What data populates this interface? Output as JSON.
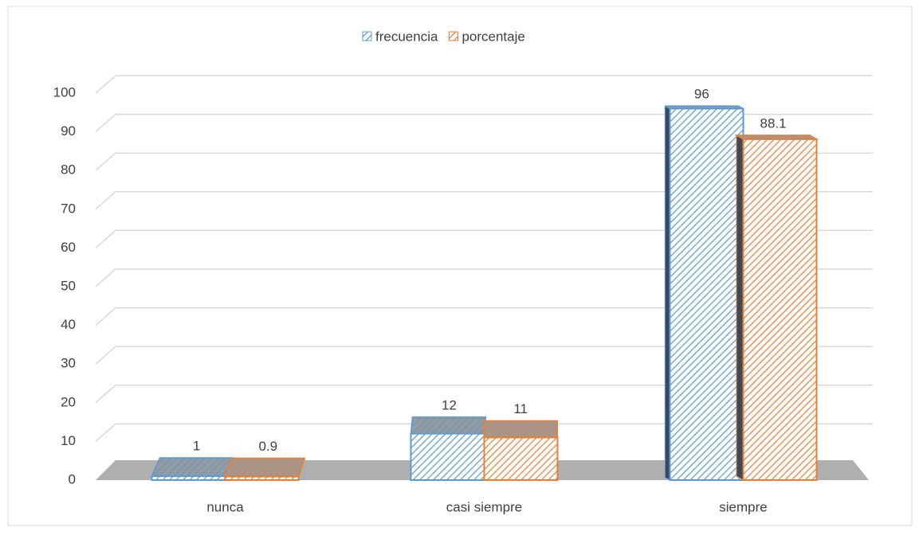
{
  "chart_data": {
    "type": "bar3d",
    "categories": [
      "nunca",
      "casi siempre",
      "siempre"
    ],
    "series": [
      {
        "name": "frecuencia",
        "color": "#5b9bd5",
        "values": [
          1,
          12,
          96
        ]
      },
      {
        "name": "porcentaje",
        "color": "#ed7d31",
        "values": [
          0.9,
          11,
          88.1
        ]
      }
    ],
    "ylim": [
      0,
      100
    ],
    "yticks": [
      0,
      10,
      20,
      30,
      40,
      50,
      60,
      70,
      80,
      90,
      100
    ],
    "grid": true,
    "legend": "top"
  }
}
